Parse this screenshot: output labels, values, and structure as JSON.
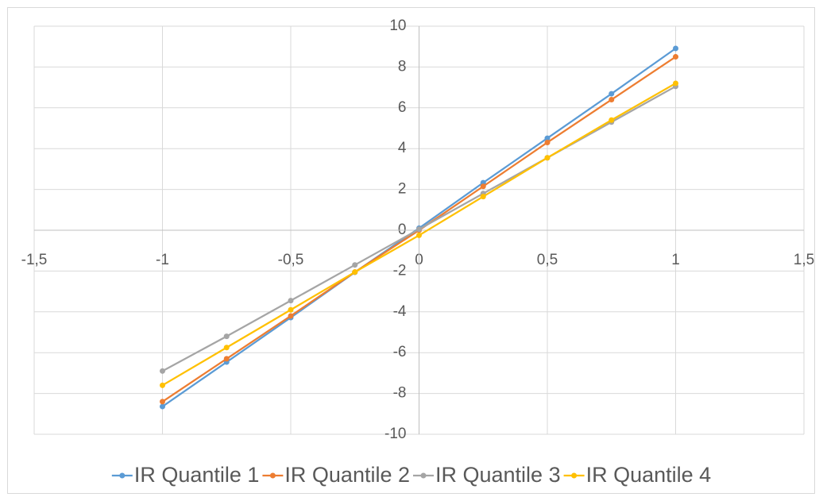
{
  "chart_data": {
    "type": "line",
    "x": [
      -1,
      -0.75,
      -0.5,
      -0.25,
      0,
      0.25,
      0.5,
      0.75,
      1
    ],
    "series": [
      {
        "name": "IR Quantile 1",
        "color": "#5b9bd5",
        "values": [
          -8.64,
          -6.46,
          -4.28,
          -2.06,
          0.1,
          2.33,
          4.51,
          6.69,
          8.91
        ]
      },
      {
        "name": "IR Quantile 2",
        "color": "#ed7d31",
        "values": [
          -8.4,
          -6.3,
          -4.2,
          -2.05,
          0,
          2.15,
          4.3,
          6.4,
          8.5
        ]
      },
      {
        "name": "IR Quantile 3",
        "color": "#a5a5a5",
        "values": [
          -6.9,
          -5.2,
          -3.45,
          -1.7,
          0.05,
          1.8,
          3.55,
          5.3,
          7.05
        ]
      },
      {
        "name": "IR Quantile 4",
        "color": "#ffc000",
        "values": [
          -7.6,
          -5.75,
          -3.9,
          -2.05,
          -0.25,
          1.65,
          3.55,
          5.4,
          7.2
        ]
      }
    ],
    "xlim": [
      -1.5,
      1.5
    ],
    "xticks": [
      {
        "value": -1.5,
        "label": "-1,5"
      },
      -1,
      {
        "value": -0.5,
        "label": "-0,5"
      },
      0,
      {
        "value": 0.5,
        "label": "0,5"
      },
      1,
      {
        "value": 1.5,
        "label": "1,5"
      }
    ],
    "ylim": [
      -10,
      10
    ],
    "yticks": [
      -10,
      -8,
      -6,
      -4,
      -2,
      0,
      2,
      4,
      6,
      8,
      10
    ],
    "grid": true,
    "legend": "bottom"
  }
}
